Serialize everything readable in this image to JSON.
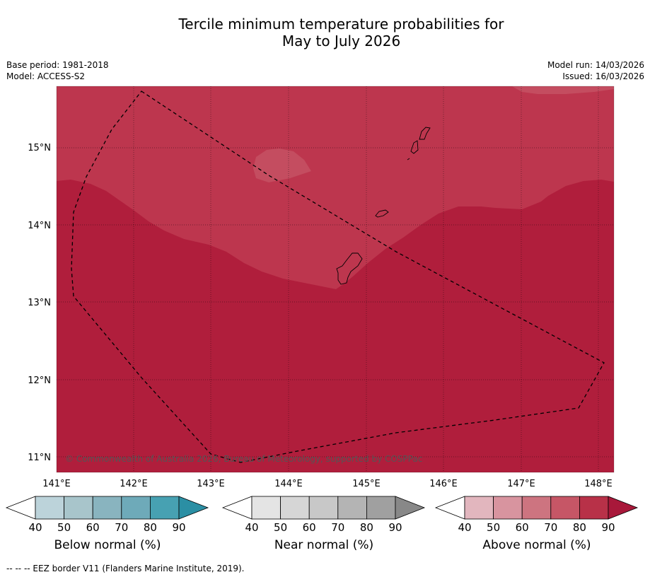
{
  "title": {
    "line1": "Tercile minimum temperature probabilities for",
    "line2": "May to July 2026"
  },
  "meta": {
    "base_period": "Base period: 1981-2018",
    "model": "Model: ACCESS-S2",
    "model_run": "Model run: 14/03/2026",
    "issued": "Issued: 16/03/2026"
  },
  "map": {
    "lat_labels": [
      "15°N",
      "14°N",
      "13°N",
      "12°N",
      "11°N"
    ],
    "lon_labels": [
      "141°E",
      "142°E",
      "143°E",
      "144°E",
      "145°E",
      "146°E",
      "147°E",
      "148°E"
    ],
    "copyright": "© Commonwealth of Australia 2026, Bureau of Meteorology, supported by COSPPac",
    "regions": {
      "above_90_color": "#b01e3c",
      "above_80_color": "#bd364e",
      "above_70_color": "#c44d60"
    }
  },
  "colorbars": [
    {
      "name": "below",
      "label": "Below normal (%)",
      "ticks": [
        "40",
        "50",
        "60",
        "70",
        "80",
        "90"
      ],
      "colors": [
        "#ffffff",
        "#bcd3da",
        "#a8c5cb",
        "#89b4bf",
        "#6eaab9",
        "#47a1b2",
        "#2b8fa4"
      ]
    },
    {
      "name": "near",
      "label": "Near normal (%)",
      "ticks": [
        "40",
        "50",
        "60",
        "70",
        "80",
        "90"
      ],
      "colors": [
        "#ffffff",
        "#e4e4e4",
        "#d6d6d6",
        "#c8c8c8",
        "#b4b4b4",
        "#a0a0a0",
        "#888888"
      ]
    },
    {
      "name": "above",
      "label": "Above normal (%)",
      "ticks": [
        "40",
        "50",
        "60",
        "70",
        "80",
        "90"
      ],
      "colors": [
        "#ffffff",
        "#e2b6be",
        "#d8949f",
        "#cd7480",
        "#c65666",
        "#b83148",
        "#a8183a"
      ]
    }
  ],
  "footnote": "--  --  -- EEZ border V11 (Flanders Marine Institute, 2019)."
}
